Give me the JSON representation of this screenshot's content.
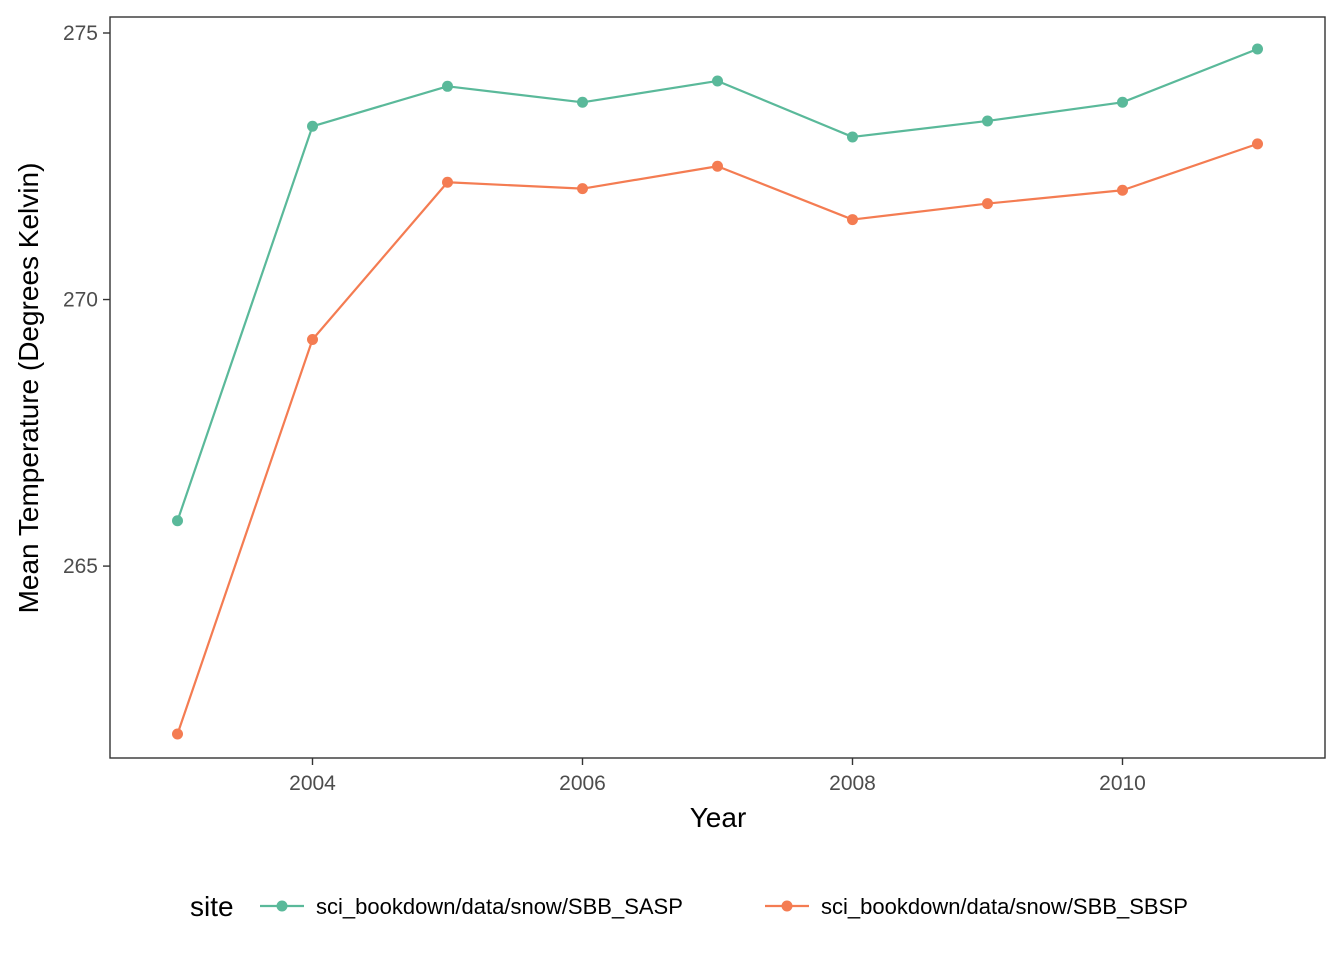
{
  "chart_data": {
    "type": "line",
    "xlabel": "Year",
    "ylabel": "Mean Temperature (Degrees Kelvin)",
    "x": [
      2003,
      2004,
      2005,
      2006,
      2007,
      2008,
      2009,
      2010,
      2011
    ],
    "xlim": [
      2002.5,
      2011.5
    ],
    "ylim": [
      261.4,
      275.3
    ],
    "x_ticks": [
      2004,
      2006,
      2008,
      2010
    ],
    "x_tick_labels": [
      "2004",
      "2006",
      "2008",
      "2010"
    ],
    "y_ticks": [
      265,
      270,
      275
    ],
    "y_tick_labels": [
      "265",
      "270",
      "275"
    ],
    "grid": false,
    "legend": {
      "title": "site",
      "position": "bottom"
    },
    "series": [
      {
        "name": "sci_bookdown/data/snow/SBB_SASP",
        "color": "#5ab99a",
        "values": [
          265.85,
          273.25,
          274.0,
          273.7,
          274.1,
          273.05,
          273.35,
          273.7,
          274.7
        ]
      },
      {
        "name": "sci_bookdown/data/snow/SBB_SBSP",
        "color": "#f47c52",
        "values": [
          261.85,
          269.25,
          272.2,
          272.08,
          272.5,
          271.5,
          271.8,
          272.05,
          272.92
        ]
      }
    ]
  }
}
